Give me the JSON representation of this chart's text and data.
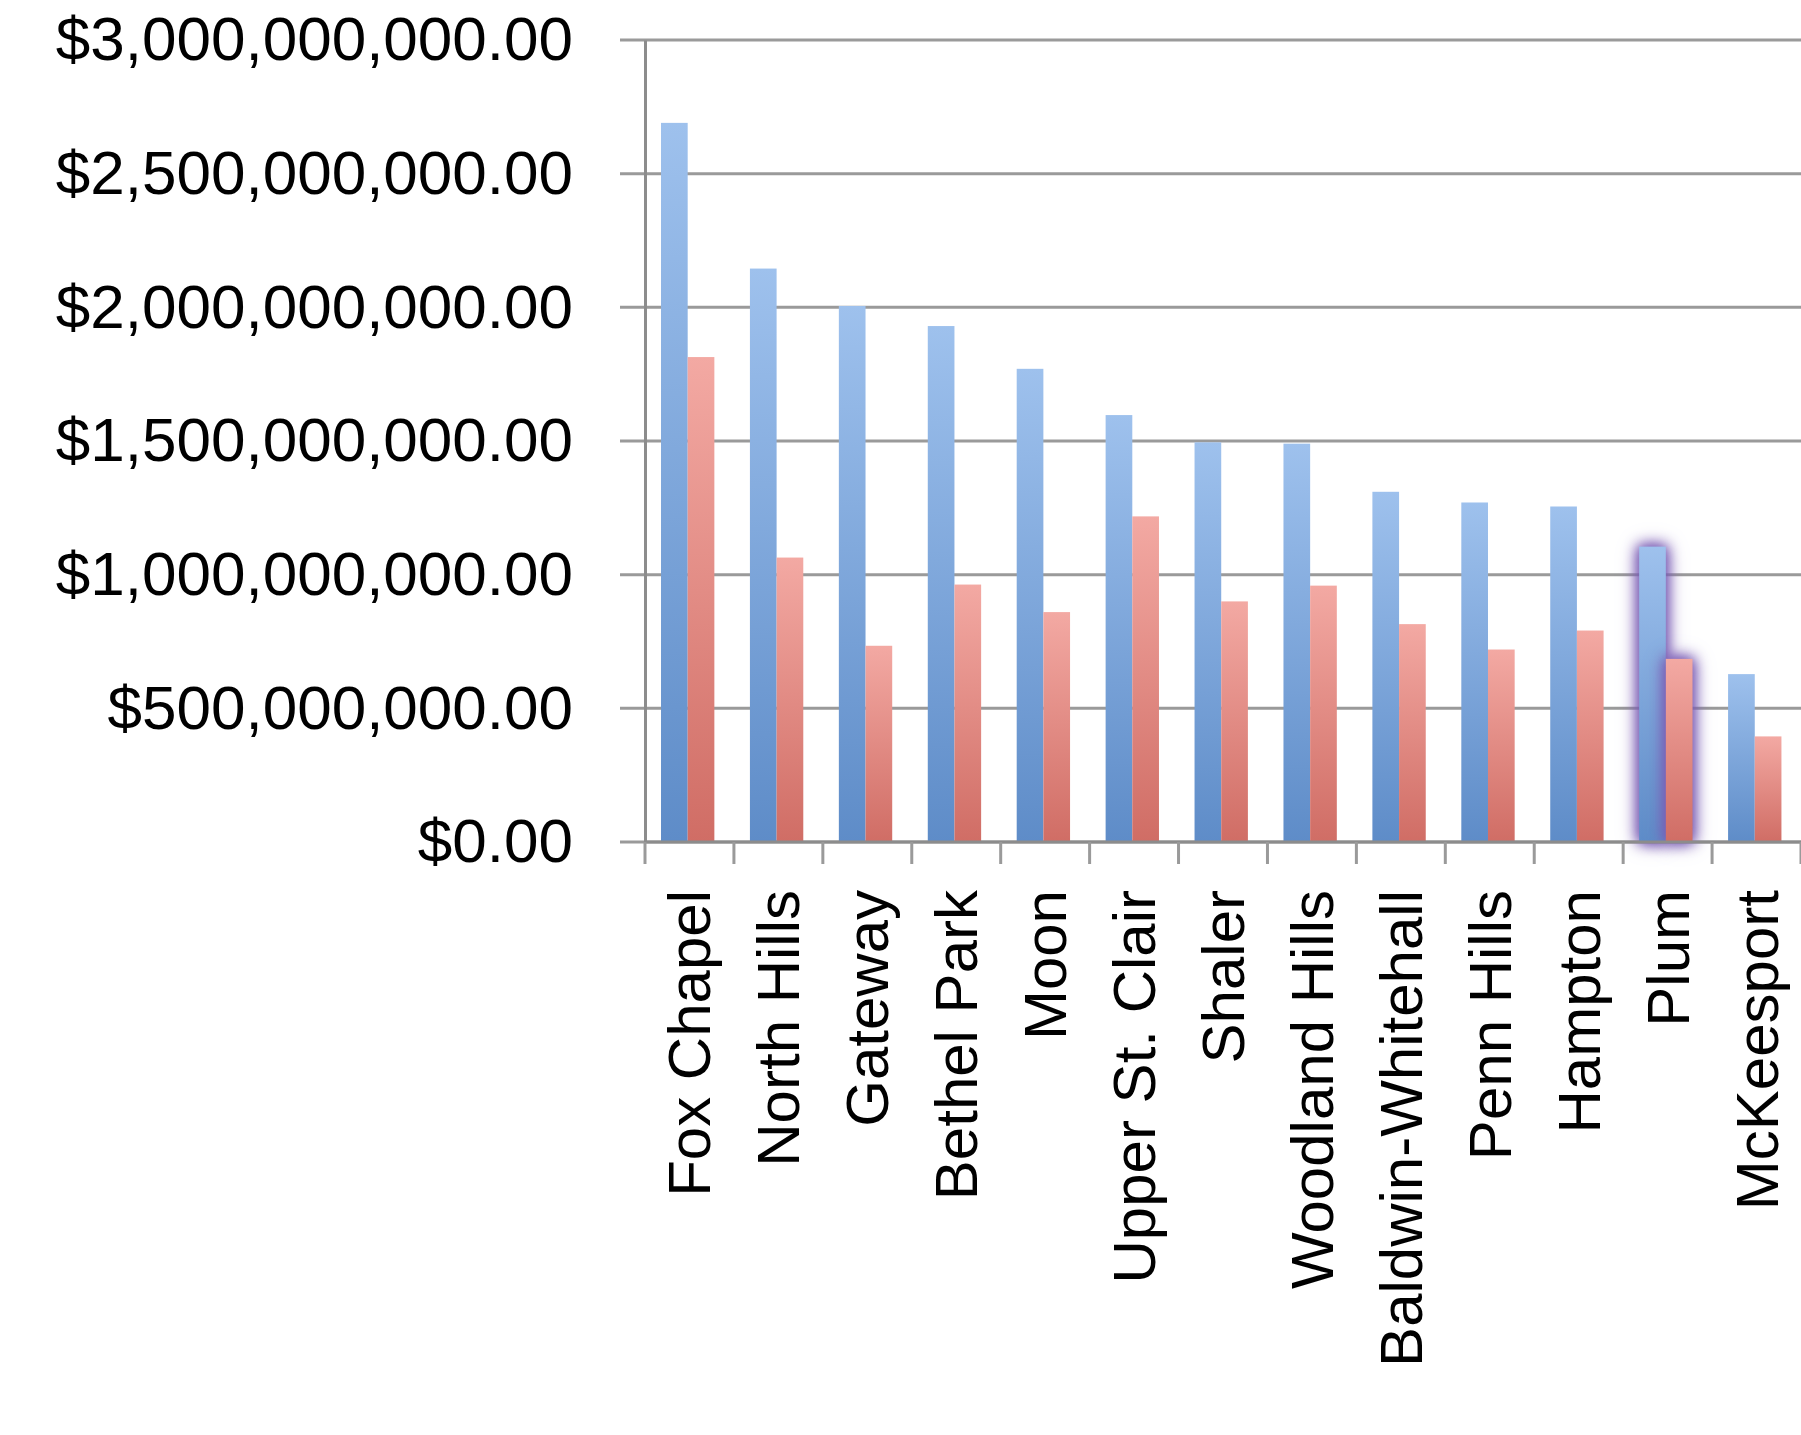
{
  "chart_data": {
    "type": "bar",
    "categories": [
      "Fox Chapel",
      "North Hills",
      "Gateway",
      "Bethel Park",
      "Moon",
      "Upper St. Clair",
      "Shaler",
      "Woodland Hills",
      "Baldwin-Whitehall",
      "Penn Hills",
      "Hampton",
      "Plum",
      "McKeesport"
    ],
    "series": [
      {
        "color": "#6a9fe3",
        "values": [
          2690000000,
          2145000000,
          2005000000,
          1930000000,
          1770000000,
          1597000000,
          1495000000,
          1490000000,
          1310000000,
          1270000000,
          1255000000,
          1105000000,
          628000000
        ]
      },
      {
        "color": "#ec7b72",
        "values": [
          1814000000,
          1064000000,
          734000000,
          963000000,
          860000000,
          1218000000,
          900000000,
          959000000,
          815000000,
          720000000,
          791000000,
          685000000,
          395000000
        ]
      }
    ],
    "ylim": [
      0,
      3000000000
    ],
    "yticks": [
      {
        "value": 0,
        "label": "$0.00"
      },
      {
        "value": 500000000,
        "label": "$500,000,000.00"
      },
      {
        "value": 1000000000,
        "label": "$1,000,000,000.00"
      },
      {
        "value": 1500000000,
        "label": "$1,500,000,000.00"
      },
      {
        "value": 2000000000,
        "label": "$2,000,000,000.00"
      },
      {
        "value": 2500000000,
        "label": "$2,500,000,000.00"
      },
      {
        "value": 3000000000,
        "label": "$3,000,000,000.00"
      }
    ],
    "grid": "y"
  }
}
